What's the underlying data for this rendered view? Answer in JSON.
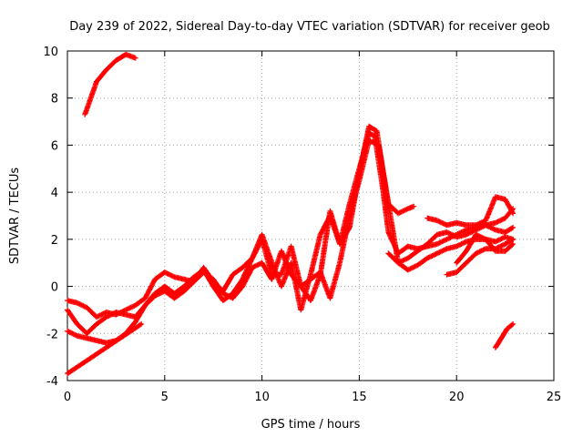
{
  "chart_data": {
    "type": "scatter",
    "title": "Day 239 of 2022, Sidereal Day-to-day VTEC variation (SDTVAR) for receiver geob",
    "xlabel": "GPS time / hours",
    "ylabel": "SDTVAR / TECUs",
    "xlim": [
      0,
      25
    ],
    "ylim": [
      -4,
      10
    ],
    "xticks": [
      "0",
      "5",
      "10",
      "15",
      "20",
      "25"
    ],
    "yticks": [
      "-4",
      "-2",
      "0",
      "2",
      "4",
      "6",
      "8",
      "10"
    ],
    "grid": true,
    "marker": "+",
    "series_color": "#ff0000",
    "series": [
      {
        "name": "track-early-high",
        "points": [
          [
            0.9,
            7.3
          ],
          [
            1.2,
            8.0
          ],
          [
            1.5,
            8.7
          ],
          [
            2.0,
            9.2
          ],
          [
            2.5,
            9.6
          ],
          [
            3.0,
            9.85
          ],
          [
            3.5,
            9.7
          ]
        ]
      },
      {
        "name": "track-main-a",
        "points": [
          [
            0.0,
            -1.0
          ],
          [
            0.5,
            -1.6
          ],
          [
            1.0,
            -2.0
          ],
          [
            1.5,
            -1.6
          ],
          [
            2.0,
            -1.3
          ],
          [
            2.5,
            -1.1
          ],
          [
            3.0,
            -1.2
          ],
          [
            3.5,
            -1.3
          ],
          [
            4.0,
            -0.8
          ],
          [
            4.5,
            -0.3
          ],
          [
            5.0,
            0.0
          ],
          [
            5.5,
            -0.3
          ],
          [
            6.0,
            0.0
          ],
          [
            6.5,
            0.4
          ],
          [
            7.0,
            0.7
          ],
          [
            7.5,
            0.0
          ],
          [
            8.0,
            -0.6
          ],
          [
            8.5,
            -0.3
          ],
          [
            9.0,
            0.3
          ],
          [
            9.5,
            1.2
          ],
          [
            10.0,
            2.2
          ],
          [
            10.3,
            1.5
          ],
          [
            10.6,
            0.8
          ],
          [
            11.0,
            0.0
          ],
          [
            11.5,
            1.0
          ],
          [
            12.0,
            -1.0
          ],
          [
            12.5,
            0.5
          ],
          [
            13.0,
            2.2
          ],
          [
            13.5,
            3.0
          ],
          [
            14.0,
            1.8
          ],
          [
            14.5,
            3.5
          ],
          [
            15.0,
            5.0
          ],
          [
            15.5,
            6.5
          ],
          [
            15.8,
            6.4
          ],
          [
            16.2,
            4.2
          ],
          [
            16.5,
            2.3
          ],
          [
            17.0,
            1.4
          ],
          [
            17.5,
            1.7
          ],
          [
            18.0,
            1.6
          ],
          [
            18.5,
            1.7
          ],
          [
            19.0,
            1.8
          ],
          [
            19.5,
            2.0
          ],
          [
            20.0,
            2.2
          ],
          [
            20.5,
            2.4
          ],
          [
            21.0,
            2.5
          ],
          [
            21.5,
            2.6
          ],
          [
            22.0,
            2.7
          ],
          [
            22.5,
            2.9
          ],
          [
            22.9,
            3.3
          ]
        ]
      },
      {
        "name": "track-main-b",
        "points": [
          [
            0.0,
            -1.9
          ],
          [
            0.5,
            -2.1
          ],
          [
            1.0,
            -2.2
          ],
          [
            1.5,
            -2.3
          ],
          [
            2.0,
            -2.4
          ],
          [
            2.5,
            -2.3
          ],
          [
            3.0,
            -2.0
          ],
          [
            3.5,
            -1.5
          ],
          [
            4.0,
            -0.8
          ],
          [
            4.5,
            -0.4
          ],
          [
            5.0,
            -0.2
          ],
          [
            5.5,
            -0.5
          ],
          [
            6.0,
            -0.2
          ],
          [
            6.5,
            0.2
          ],
          [
            7.0,
            0.6
          ],
          [
            7.5,
            0.3
          ],
          [
            8.0,
            -0.3
          ],
          [
            8.5,
            -0.5
          ],
          [
            9.0,
            0.0
          ],
          [
            9.5,
            0.8
          ],
          [
            10.0,
            1.0
          ],
          [
            10.5,
            0.3
          ],
          [
            11.0,
            1.5
          ],
          [
            11.5,
            0.5
          ],
          [
            12.0,
            0.0
          ],
          [
            12.5,
            0.3
          ],
          [
            13.0,
            0.6
          ],
          [
            13.5,
            -0.5
          ],
          [
            14.0,
            1.0
          ],
          [
            14.5,
            3.0
          ],
          [
            15.0,
            4.5
          ],
          [
            15.5,
            6.2
          ],
          [
            16.0,
            6.0
          ],
          [
            16.5,
            3.5
          ],
          [
            17.0,
            1.0
          ],
          [
            17.5,
            0.7
          ],
          [
            18.0,
            0.9
          ],
          [
            18.5,
            1.2
          ],
          [
            19.0,
            1.4
          ],
          [
            19.5,
            1.6
          ],
          [
            20.0,
            1.7
          ],
          [
            20.5,
            1.9
          ],
          [
            21.0,
            2.0
          ],
          [
            21.5,
            2.0
          ],
          [
            22.0,
            1.9
          ],
          [
            22.5,
            2.1
          ],
          [
            22.9,
            2.0
          ]
        ]
      },
      {
        "name": "track-main-c",
        "points": [
          [
            0.0,
            -0.6
          ],
          [
            0.5,
            -0.7
          ],
          [
            1.0,
            -0.9
          ],
          [
            1.5,
            -1.3
          ],
          [
            2.0,
            -1.1
          ],
          [
            2.5,
            -1.2
          ],
          [
            3.0,
            -1.0
          ],
          [
            3.5,
            -0.8
          ],
          [
            4.0,
            -0.5
          ],
          [
            4.5,
            0.3
          ],
          [
            5.0,
            0.6
          ],
          [
            5.5,
            0.4
          ],
          [
            6.0,
            0.3
          ],
          [
            6.5,
            0.2
          ],
          [
            7.0,
            0.8
          ],
          [
            7.5,
            0.2
          ],
          [
            8.0,
            -0.2
          ],
          [
            8.5,
            0.5
          ],
          [
            9.0,
            0.8
          ],
          [
            9.5,
            1.2
          ],
          [
            10.0,
            2.0
          ],
          [
            10.5,
            0.5
          ],
          [
            11.0,
            0.5
          ],
          [
            11.5,
            1.7
          ],
          [
            12.0,
            0.0
          ],
          [
            12.5,
            -0.6
          ],
          [
            13.0,
            0.5
          ],
          [
            13.5,
            3.2
          ],
          [
            14.0,
            1.8
          ],
          [
            14.5,
            2.5
          ],
          [
            15.0,
            4.8
          ],
          [
            15.5,
            6.8
          ],
          [
            15.9,
            6.6
          ],
          [
            16.2,
            5.0
          ],
          [
            16.5,
            3.5
          ],
          [
            17.0,
            3.1
          ],
          [
            17.5,
            3.3
          ],
          [
            17.8,
            3.4
          ]
        ]
      },
      {
        "name": "track-late-1",
        "points": [
          [
            16.5,
            1.4
          ],
          [
            17.0,
            1.0
          ],
          [
            17.5,
            1.2
          ],
          [
            18.0,
            1.5
          ],
          [
            18.5,
            1.8
          ],
          [
            19.0,
            2.2
          ],
          [
            19.5,
            2.3
          ],
          [
            20.0,
            2.1
          ],
          [
            20.5,
            2.2
          ],
          [
            21.0,
            2.4
          ],
          [
            21.5,
            2.6
          ],
          [
            22.0,
            2.4
          ],
          [
            22.5,
            2.3
          ],
          [
            22.9,
            2.5
          ]
        ]
      },
      {
        "name": "track-late-2",
        "points": [
          [
            18.5,
            2.9
          ],
          [
            19.0,
            2.8
          ],
          [
            19.5,
            2.6
          ],
          [
            20.0,
            2.7
          ],
          [
            20.5,
            2.6
          ],
          [
            21.0,
            2.6
          ],
          [
            21.5,
            2.8
          ],
          [
            22.0,
            3.8
          ],
          [
            22.5,
            3.7
          ],
          [
            22.9,
            3.1
          ]
        ]
      },
      {
        "name": "track-late-3",
        "points": [
          [
            19.5,
            0.5
          ],
          [
            20.0,
            0.6
          ],
          [
            20.5,
            1.0
          ],
          [
            21.0,
            1.4
          ],
          [
            21.5,
            1.6
          ],
          [
            22.0,
            1.6
          ],
          [
            22.5,
            1.8
          ],
          [
            22.9,
            2.0
          ]
        ]
      },
      {
        "name": "track-late-4",
        "points": [
          [
            20.0,
            1.0
          ],
          [
            20.5,
            1.5
          ],
          [
            21.0,
            2.2
          ],
          [
            21.5,
            2.0
          ],
          [
            22.0,
            1.5
          ],
          [
            22.5,
            1.5
          ],
          [
            22.9,
            1.8
          ]
        ]
      },
      {
        "name": "track-late-low",
        "points": [
          [
            22.0,
            -2.6
          ],
          [
            22.3,
            -2.2
          ],
          [
            22.6,
            -1.8
          ],
          [
            22.9,
            -1.6
          ]
        ]
      },
      {
        "name": "isolated-points",
        "points": [
          [
            0.0,
            -3.7
          ],
          [
            0.1,
            -3.65
          ],
          [
            3.8,
            -1.6
          ]
        ]
      }
    ]
  }
}
